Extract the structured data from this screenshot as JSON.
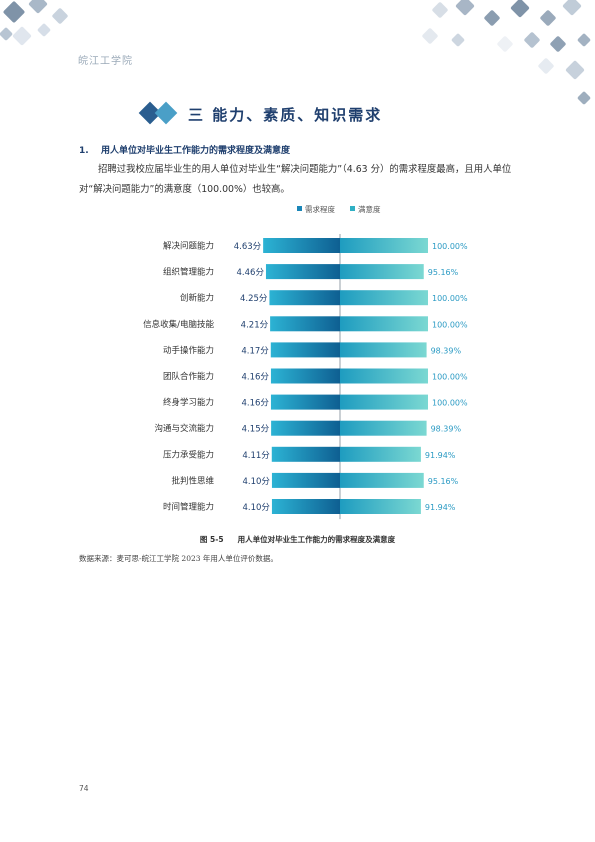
{
  "header": {
    "school_name": "皖江工学院"
  },
  "section": {
    "title": "三  能力、素质、知识需求"
  },
  "subsection": {
    "number": "1.",
    "title": "用人单位对毕业生工作能力的需求程度及满意度"
  },
  "paragraph": {
    "text": "招聘过我校应届毕业生的用人单位对毕业生“解决问题能力”（4.63 分）的需求程度最高，且用人单位对“解决问题能力”的满意度（100.00%）也较高。"
  },
  "figure": {
    "caption_number": "图 5-5",
    "caption_title": "用人单位对毕业生工作能力的需求程度及满意度",
    "source": "数据来源：麦可思-皖江工学院 2023 年用人单位评价数据。"
  },
  "page_number": "74",
  "colors": {
    "demand": "#1a86b8",
    "demand_dark": "#0e5f92",
    "satisfaction": "#2fb0c4",
    "satisfaction_light": "#72d3d3",
    "heading": "#1f3f6e",
    "demand_label": "#1f3f6e",
    "satisfaction_label": "#2c9bc4"
  },
  "chart_data": {
    "type": "bar",
    "layout": "butterfly",
    "legend": [
      "需求程度",
      "满意度"
    ],
    "legend_position": "top-center",
    "categories": [
      "解决问题能力",
      "组织管理能力",
      "创新能力",
      "信息收集/电脑技能",
      "动手操作能力",
      "团队合作能力",
      "终身学习能力",
      "沟通与交流能力",
      "压力承受能力",
      "批判性思维",
      "时间管理能力"
    ],
    "series": [
      {
        "name": "需求程度",
        "values": [
          4.63,
          4.46,
          4.25,
          4.21,
          4.17,
          4.16,
          4.16,
          4.15,
          4.11,
          4.1,
          4.1
        ],
        "labels": [
          "4.63分",
          "4.46分",
          "4.25分",
          "4.21分",
          "4.17分",
          "4.16分",
          "4.16分",
          "4.15分",
          "4.11分",
          "4.10分",
          "4.10分"
        ]
      },
      {
        "name": "满意度",
        "values": [
          100.0,
          95.16,
          100.0,
          100.0,
          98.39,
          100.0,
          100.0,
          98.39,
          91.94,
          95.16,
          91.94
        ],
        "labels": [
          "100.00%",
          "95.16%",
          "100.00%",
          "100.00%",
          "98.39%",
          "100.00%",
          "100.00%",
          "98.39%",
          "91.94%",
          "95.16%",
          "91.94%"
        ]
      }
    ]
  }
}
